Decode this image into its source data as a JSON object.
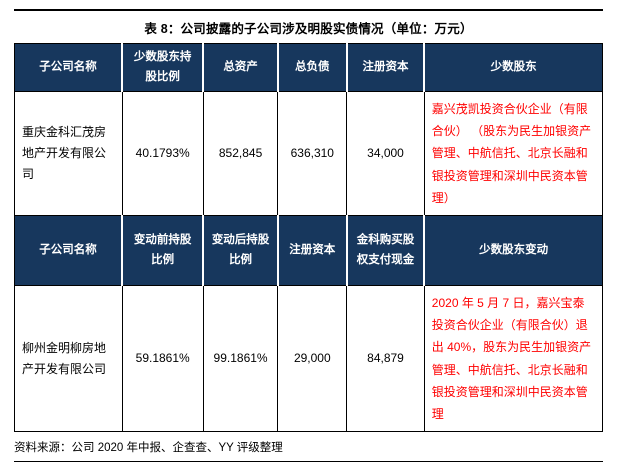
{
  "title": "表 8：公司披露的子公司涉及明股实债情况（单位：万元）",
  "colors": {
    "header_bg": "#17375D",
    "header_text": "#FFFFFF",
    "highlight_red": "#FF0000",
    "border": "#000000"
  },
  "table1": {
    "headers": [
      "子公司名称",
      "少数股东持股比例",
      "总资产",
      "总负债",
      "注册资本",
      "少数股东"
    ],
    "row": {
      "name": "重庆金科汇茂房地产开发有限公司",
      "minority_ratio": "40.1793%",
      "total_assets": "852,845",
      "total_liabilities": "636,310",
      "registered_capital": "34,000",
      "minority_shareholders": "嘉兴茂凯投资合伙企业（有限合伙） （股东为民生加银资产管理、中航信托、北京长融和银投资管理和深圳中民资本管理）"
    }
  },
  "table2": {
    "headers": [
      "子公司名称",
      "变动前持股比例",
      "变动后持股比例",
      "注册资本",
      "金科购买股权支付现金",
      "少数股东变动"
    ],
    "row": {
      "name": "柳州金明柳房地产开发有限公司",
      "ratio_before": "59.1861%",
      "ratio_after": "99.1861%",
      "registered_capital": "29,000",
      "cash_paid": "84,879",
      "minority_change": "2020 年 5 月 7 日，嘉兴宝泰投资合伙企业（有限合伙）退出 40%，股东为民生加银资产管理、中航信托、北京长融和银投资管理和深圳中民资本管理"
    }
  },
  "source": "资料来源：公司 2020 年中报、企查查、YY 评级整理"
}
